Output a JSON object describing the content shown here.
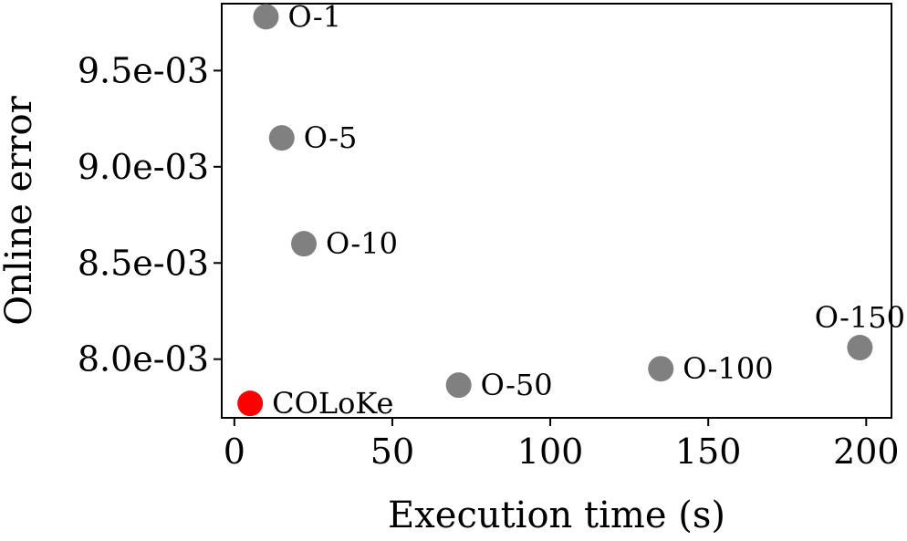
{
  "chart_data": {
    "type": "scatter",
    "xlabel": "Execution time (s)",
    "ylabel": "Online error",
    "xlim": [
      -4,
      208
    ],
    "ylim": [
      0.007695,
      0.009848
    ],
    "xticks": [
      0,
      50,
      100,
      150,
      200
    ],
    "xtick_labels": [
      "0",
      "50",
      "100",
      "150",
      "200"
    ],
    "yticks": [
      0.008,
      0.0085,
      0.009,
      0.0095
    ],
    "ytick_labels": [
      "8.0e-03",
      "8.5e-03",
      "9.0e-03",
      "9.5e-03"
    ],
    "grid": false,
    "colors": {
      "baseline": "#808080",
      "highlight": "#ff0000"
    },
    "points": [
      {
        "label": "O-1",
        "x": 10,
        "y": 0.00978,
        "color": "#808080"
      },
      {
        "label": "O-5",
        "x": 15,
        "y": 0.00915,
        "color": "#808080"
      },
      {
        "label": "O-10",
        "x": 22,
        "y": 0.0086,
        "color": "#808080"
      },
      {
        "label": "O-50",
        "x": 71,
        "y": 0.007865,
        "color": "#808080"
      },
      {
        "label": "O-100",
        "x": 135,
        "y": 0.00795,
        "color": "#808080"
      },
      {
        "label": "O-150",
        "x": 198,
        "y": 0.00806,
        "color": "#808080"
      },
      {
        "label": "COLoKe",
        "x": 5,
        "y": 0.00777,
        "color": "#ff0000"
      }
    ]
  }
}
